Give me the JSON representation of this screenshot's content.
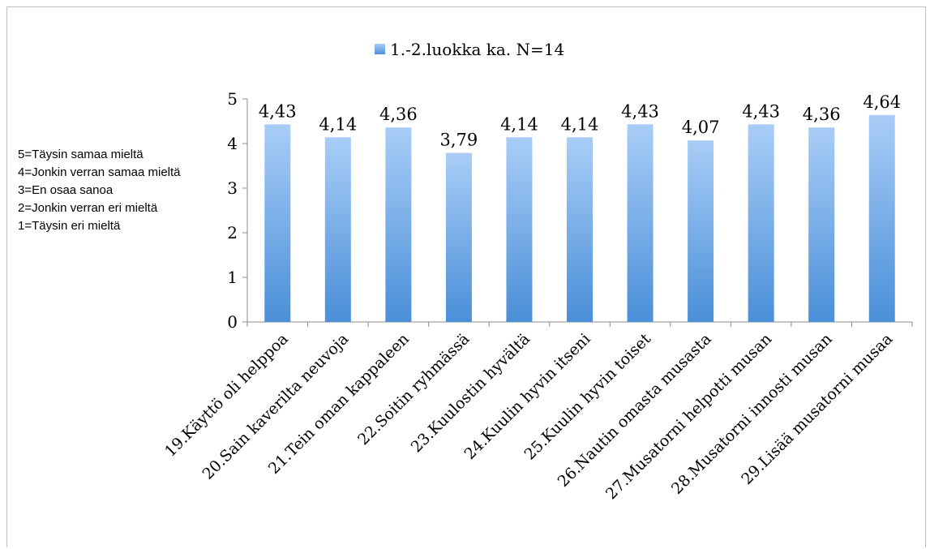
{
  "scale_note": [
    "5=Täysin samaa mieltä",
    "4=Jonkin verran samaa mieltä",
    "3=En osaa sanoa",
    "2=Jonkin verran eri mieltä",
    "1=Täysin eri mieltä"
  ],
  "chart_data": {
    "type": "bar",
    "title": "",
    "xlabel": "",
    "ylabel": "",
    "ylim": [
      0,
      5
    ],
    "yticks": [
      "0",
      "1",
      "2",
      "3",
      "4",
      "5"
    ],
    "grid": false,
    "legend_position": "top",
    "categories": [
      "19.Käyttö oli helppoa",
      "20.Sain kaverilta neuvoja",
      "21.Tein oman kappaleen",
      "22.Soitin ryhmässä",
      "23.Kuulostin hyvältä",
      "24.Kuulin hyvin itseni",
      "25.Kuulin hyvin toiset",
      "26.Nautin omasta musasta",
      "27.Musatorni helpotti musan",
      "28.Musatorni innosti musan",
      "29.Lisää musatorni musaa"
    ],
    "series": [
      {
        "name": "1.-2.luokka ka. N=14",
        "values": [
          4.43,
          4.14,
          4.36,
          3.79,
          4.14,
          4.14,
          4.43,
          4.07,
          4.43,
          4.36,
          4.64
        ],
        "labels": [
          "4,43",
          "4,14",
          "4,36",
          "3,79",
          "4,14",
          "4,14",
          "4,43",
          "4,07",
          "4,43",
          "4,36",
          "4,64"
        ],
        "color": "#4a90d9"
      }
    ]
  }
}
